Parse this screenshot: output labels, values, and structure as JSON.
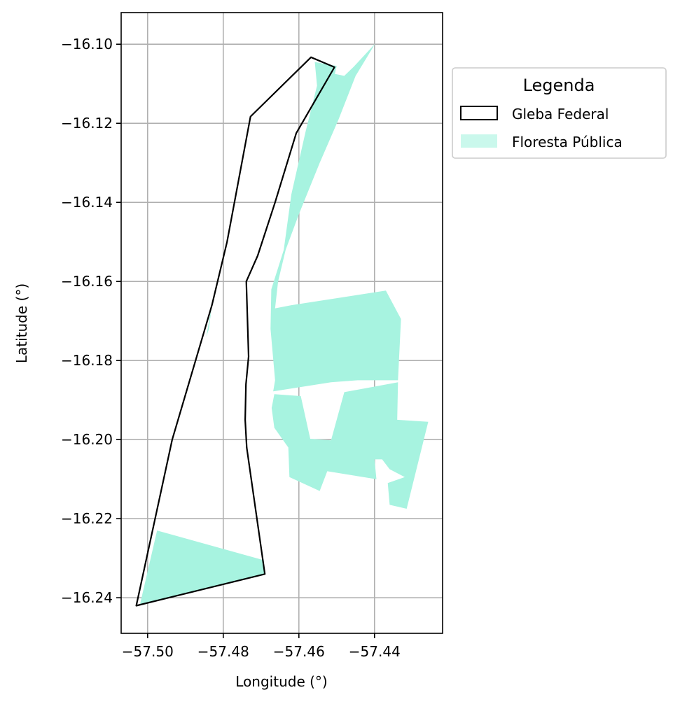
{
  "chart_data": {
    "type": "map",
    "xlabel": "Longitude (°)",
    "ylabel": "Latitude (°)",
    "xlim": [
      -57.507,
      -57.422
    ],
    "ylim": [
      -16.249,
      -16.092
    ],
    "xticks": [
      -57.5,
      -57.48,
      -57.46,
      -57.44
    ],
    "xtick_labels": [
      "−57.50",
      "−57.48",
      "−57.46",
      "−57.44"
    ],
    "yticks": [
      -16.1,
      -16.12,
      -16.14,
      -16.16,
      -16.18,
      -16.2,
      -16.22,
      -16.24
    ],
    "ytick_labels": [
      "−16.10",
      "−16.12",
      "−16.14",
      "−16.16",
      "−16.18",
      "−16.20",
      "−16.22",
      "−16.24"
    ],
    "grid": true,
    "legend": {
      "title": "Legenda",
      "placement": "outside-upper-right",
      "entries": [
        {
          "label": "Gleba Federal",
          "style": "outline",
          "color": "#000000"
        },
        {
          "label": "Floresta Pública",
          "style": "fill",
          "color": "#a7f3e0"
        }
      ]
    },
    "gleba_color": "#000000",
    "floresta_color": "#a7f3e0",
    "gleba_federal": [
      [
        -57.4568,
        -16.1033
      ],
      [
        -57.4506,
        -16.1058
      ],
      [
        -57.4607,
        -16.1225
      ],
      [
        -57.4663,
        -16.14
      ],
      [
        -57.4709,
        -16.1535
      ],
      [
        -57.4739,
        -16.16
      ],
      [
        -57.4733,
        -16.179
      ],
      [
        -57.474,
        -16.186
      ],
      [
        -57.4742,
        -16.195
      ],
      [
        -57.4738,
        -16.202
      ],
      [
        -57.469,
        -16.234
      ],
      [
        -57.503,
        -16.242
      ],
      [
        -57.4935,
        -16.2
      ],
      [
        -57.483,
        -16.166
      ],
      [
        -57.479,
        -16.15
      ],
      [
        -57.4728,
        -16.1183
      ]
    ],
    "floresta_publica": [
      [
        [
          -57.4558,
          -16.1045
        ],
        [
          -57.45,
          -16.1055
        ],
        [
          -57.4505,
          -16.1075
        ],
        [
          -57.448,
          -16.108
        ],
        [
          -57.4455,
          -16.1057
        ],
        [
          -57.4398,
          -16.0998
        ],
        [
          -57.445,
          -16.108
        ],
        [
          -57.4495,
          -16.119
        ],
        [
          -57.4545,
          -16.13
        ],
        [
          -57.46,
          -16.143
        ],
        [
          -57.4635,
          -16.152
        ],
        [
          -57.4655,
          -16.16
        ],
        [
          -57.4663,
          -16.1668
        ],
        [
          -57.462,
          -16.166
        ],
        [
          -57.437,
          -16.1623
        ],
        [
          -57.433,
          -16.1695
        ],
        [
          -57.4338,
          -16.185
        ],
        [
          -57.4445,
          -16.185
        ],
        [
          -57.4515,
          -16.1855
        ],
        [
          -57.4668,
          -16.1878
        ],
        [
          -57.4663,
          -16.185
        ],
        [
          -57.4675,
          -16.172
        ],
        [
          -57.4673,
          -16.162
        ],
        [
          -57.464,
          -16.152
        ],
        [
          -57.462,
          -16.138
        ],
        [
          -57.4582,
          -16.122
        ],
        [
          -57.4552,
          -16.1105
        ]
      ],
      [
        [
          -57.4665,
          -16.1885
        ],
        [
          -57.4595,
          -16.189
        ],
        [
          -57.457,
          -16.1998
        ],
        [
          -57.4515,
          -16.2002
        ],
        [
          -57.448,
          -16.188
        ],
        [
          -57.4338,
          -16.1855
        ],
        [
          -57.434,
          -16.195
        ],
        [
          -57.4258,
          -16.1955
        ],
        [
          -57.4315,
          -16.2175
        ],
        [
          -57.436,
          -16.2165
        ],
        [
          -57.4365,
          -16.211
        ],
        [
          -57.432,
          -16.2095
        ],
        [
          -57.436,
          -16.2075
        ],
        [
          -57.438,
          -16.205
        ],
        [
          -57.44,
          -16.205
        ],
        [
          -57.4395,
          -16.21
        ],
        [
          -57.4525,
          -16.208
        ],
        [
          -57.4545,
          -16.213
        ],
        [
          -57.4625,
          -16.2095
        ],
        [
          -57.4628,
          -16.202
        ],
        [
          -57.4665,
          -16.197
        ],
        [
          -57.4672,
          -16.192
        ]
      ],
      [
        [
          -57.4975,
          -16.223
        ],
        [
          -57.4693,
          -16.2305
        ],
        [
          -57.469,
          -16.234
        ],
        [
          -57.502,
          -16.2416
        ]
      ],
      [
        [
          -57.483,
          -16.166
        ],
        [
          -57.4845,
          -16.174
        ],
        [
          -57.4838,
          -16.172
        ]
      ]
    ]
  }
}
